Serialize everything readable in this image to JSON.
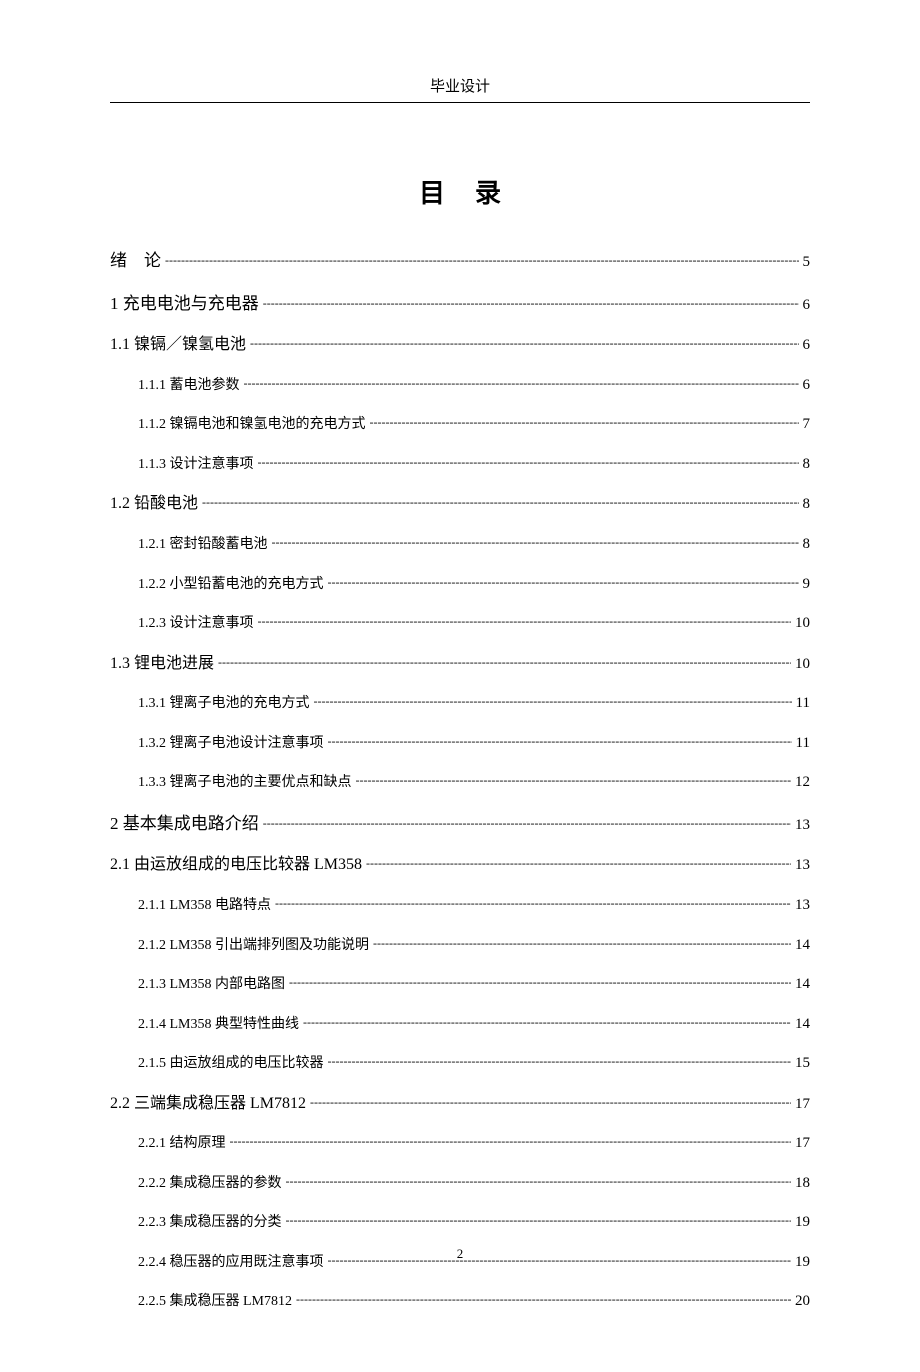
{
  "header": {
    "title": "毕业设计"
  },
  "toc": {
    "title": "目录",
    "entries": [
      {
        "level": 0,
        "label": "绪　论",
        "page": "5",
        "spaced": false
      },
      {
        "level": 0,
        "label": "1 充电电池与充电器",
        "page": "6"
      },
      {
        "level": 1,
        "label": "1.1 镍镉／镍氢电池",
        "page": "6"
      },
      {
        "level": 2,
        "label": "1.1.1 蓄电池参数",
        "page": "6"
      },
      {
        "level": 2,
        "label": "1.1.2 镍镉电池和镍氢电池的充电方式",
        "page": "7"
      },
      {
        "level": 2,
        "label": "1.1.3 设计注意事项",
        "page": "8"
      },
      {
        "level": 1,
        "label": "1.2 铅酸电池",
        "page": "8"
      },
      {
        "level": 2,
        "label": "1.2.1 密封铅酸蓄电池",
        "page": "8"
      },
      {
        "level": 2,
        "label": "1.2.2 小型铅蓄电池的充电方式",
        "page": "9"
      },
      {
        "level": 2,
        "label": "1.2.3 设计注意事项",
        "page": "10"
      },
      {
        "level": 1,
        "label": "1.3 锂电池进展",
        "page": "10"
      },
      {
        "level": 2,
        "label": "1.3.1 锂离子电池的充电方式",
        "page": "11"
      },
      {
        "level": 2,
        "label": "1.3.2 锂离子电池设计注意事项",
        "page": "11"
      },
      {
        "level": 2,
        "label": "1.3.3 锂离子电池的主要优点和缺点",
        "page": "12"
      },
      {
        "level": 0,
        "label": "2 基本集成电路介绍",
        "page": "13"
      },
      {
        "level": 1,
        "label": "2.1 由运放组成的电压比较器 LM358",
        "page": "13"
      },
      {
        "level": 2,
        "label": "2.1.1 LM358 电路特点",
        "page": "13"
      },
      {
        "level": 2,
        "label": "2.1.2 LM358 引出端排列图及功能说明",
        "page": "14"
      },
      {
        "level": 2,
        "label": "2.1.3 LM358 内部电路图",
        "page": "14"
      },
      {
        "level": 2,
        "label": "2.1.4 LM358 典型特性曲线",
        "page": "14"
      },
      {
        "level": 2,
        "label": "2.1.5 由运放组成的电压比较器",
        "page": "15"
      },
      {
        "level": 1,
        "label": "2.2 三端集成稳压器 LM7812",
        "page": "17"
      },
      {
        "level": 2,
        "label": "2.2.1 结构原理",
        "page": "17"
      },
      {
        "level": 2,
        "label": "2.2.2 集成稳压器的参数",
        "page": "18"
      },
      {
        "level": 2,
        "label": "2.2.3 集成稳压器的分类",
        "page": "19"
      },
      {
        "level": 2,
        "label": "2.2.4 稳压器的应用既注意事项",
        "page": "19"
      },
      {
        "level": 2,
        "label": "2.2.5 集成稳压器 LM7812",
        "page": "20"
      }
    ]
  },
  "footer": {
    "page_number": "2"
  }
}
